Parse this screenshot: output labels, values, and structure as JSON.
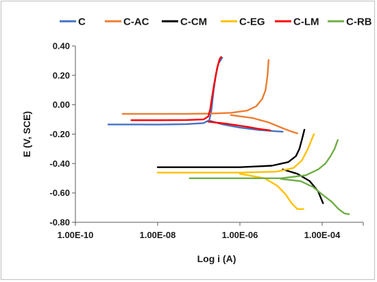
{
  "chart_data": {
    "type": "line",
    "xlabel": "Log i (A)",
    "ylabel": "E (V, SCE)",
    "x_scale": "log",
    "xlim": [
      1e-10,
      0.001
    ],
    "ylim": [
      -0.8,
      0.4
    ],
    "x_tick_values": [
      1e-10,
      1e-08,
      1e-06,
      0.0001
    ],
    "x_tick_labels": [
      "1.00E-10",
      "1.00E-08",
      "1.00E-06",
      "1.00E-04"
    ],
    "y_tick_values": [
      0.4,
      0.2,
      0.0,
      -0.2,
      -0.4,
      -0.6,
      -0.8
    ],
    "y_tick_labels": [
      "0.40",
      "0.20",
      "0.00",
      "-0.20",
      "-0.40",
      "-0.60",
      "-0.80"
    ],
    "grid": false,
    "legend_position": "top",
    "series": [
      {
        "name": "C",
        "color": "#4472C4",
        "points": [
          [
            6.3e-10,
            -0.134
          ],
          [
            3e-09,
            -0.134
          ],
          [
            1e-08,
            -0.135
          ],
          [
            5e-08,
            -0.132
          ],
          [
            1.3e-07,
            -0.125
          ],
          [
            1.8e-07,
            -0.105
          ],
          [
            2e-07,
            -0.05
          ],
          [
            2.1e-07,
            0.0
          ],
          [
            2.3e-07,
            0.1
          ],
          [
            2.6e-07,
            0.2
          ],
          [
            3e-07,
            0.28
          ],
          [
            3.7e-07,
            0.32
          ]
        ],
        "points_2": [
          [
            1.9e-07,
            -0.11
          ],
          [
            4e-07,
            -0.135
          ],
          [
            1e-06,
            -0.155
          ],
          [
            3e-06,
            -0.172
          ],
          [
            7e-06,
            -0.18
          ],
          [
            1.1e-05,
            -0.183
          ]
        ]
      },
      {
        "name": "C-AC",
        "color": "#ED7D31",
        "points": [
          [
            1.4e-09,
            -0.062
          ],
          [
            1e-08,
            -0.062
          ],
          [
            5e-08,
            -0.062
          ],
          [
            2e-07,
            -0.06
          ],
          [
            6e-07,
            -0.055
          ],
          [
            1.5e-06,
            -0.04
          ],
          [
            2.5e-06,
            -0.01
          ],
          [
            3.5e-06,
            0.04
          ],
          [
            4.2e-06,
            0.1
          ],
          [
            4.7e-06,
            0.2
          ],
          [
            5e-06,
            0.305
          ]
        ],
        "points_2": [
          [
            6e-07,
            -0.07
          ],
          [
            2e-06,
            -0.09
          ],
          [
            5e-06,
            -0.12
          ],
          [
            1e-05,
            -0.155
          ],
          [
            1.7e-05,
            -0.18
          ],
          [
            2.5e-05,
            -0.195
          ]
        ]
      },
      {
        "name": "C-CM",
        "color": "#000000",
        "points": [
          [
            1e-08,
            -0.425
          ],
          [
            1e-07,
            -0.425
          ],
          [
            1e-06,
            -0.425
          ],
          [
            6e-06,
            -0.415
          ],
          [
            1.5e-05,
            -0.39
          ],
          [
            2.3e-05,
            -0.35
          ],
          [
            2.8e-05,
            -0.3
          ],
          [
            3.2e-05,
            -0.24
          ],
          [
            3.7e-05,
            -0.17
          ]
        ],
        "points_2": [
          [
            1.1e-05,
            -0.44
          ],
          [
            2.5e-05,
            -0.47
          ],
          [
            5e-05,
            -0.52
          ],
          [
            8e-05,
            -0.59
          ],
          [
            0.000105,
            -0.67
          ]
        ]
      },
      {
        "name": "C-EG",
        "color": "#FFC000",
        "points": [
          [
            1e-08,
            -0.462
          ],
          [
            1e-07,
            -0.462
          ],
          [
            1e-06,
            -0.462
          ],
          [
            8e-06,
            -0.455
          ],
          [
            2e-05,
            -0.43
          ],
          [
            3.2e-05,
            -0.38
          ],
          [
            4.5e-05,
            -0.3
          ],
          [
            5.5e-05,
            -0.24
          ],
          [
            6.3e-05,
            -0.2
          ]
        ],
        "points_2": [
          [
            1e-06,
            -0.47
          ],
          [
            4e-06,
            -0.5
          ],
          [
            8e-06,
            -0.55
          ],
          [
            1.3e-05,
            -0.61
          ],
          [
            1.8e-05,
            -0.67
          ],
          [
            2.5e-05,
            -0.71
          ],
          [
            3.5e-05,
            -0.71
          ]
        ]
      },
      {
        "name": "C-LM",
        "color": "#FF0000",
        "points": [
          [
            2.3e-09,
            -0.105
          ],
          [
            1e-08,
            -0.105
          ],
          [
            5e-08,
            -0.104
          ],
          [
            1.3e-07,
            -0.1
          ],
          [
            1.7e-07,
            -0.08
          ],
          [
            1.9e-07,
            -0.03
          ],
          [
            2.1e-07,
            0.05
          ],
          [
            2.4e-07,
            0.15
          ],
          [
            2.8e-07,
            0.25
          ],
          [
            3.2e-07,
            0.31
          ],
          [
            3.5e-07,
            0.325
          ]
        ],
        "points_2": [
          [
            1.7e-07,
            -0.115
          ],
          [
            5e-07,
            -0.13
          ],
          [
            1.5e-06,
            -0.15
          ],
          [
            3e-06,
            -0.165
          ],
          [
            5.5e-06,
            -0.175
          ]
        ]
      },
      {
        "name": "C-RB",
        "color": "#70AD47",
        "points": [
          [
            6e-08,
            -0.5
          ],
          [
            1e-06,
            -0.5
          ],
          [
            1e-05,
            -0.5
          ],
          [
            4e-05,
            -0.48
          ],
          [
            8e-05,
            -0.44
          ],
          [
            0.00012,
            -0.4
          ],
          [
            0.00016,
            -0.35
          ],
          [
            0.0002,
            -0.3
          ],
          [
            0.00024,
            -0.24
          ]
        ],
        "points_2": [
          [
            1e-05,
            -0.505
          ],
          [
            3e-05,
            -0.52
          ],
          [
            6e-05,
            -0.56
          ],
          [
            0.0001,
            -0.61
          ],
          [
            0.00017,
            -0.66
          ],
          [
            0.00025,
            -0.71
          ],
          [
            0.00035,
            -0.74
          ],
          [
            0.00045,
            -0.745
          ]
        ]
      }
    ]
  }
}
